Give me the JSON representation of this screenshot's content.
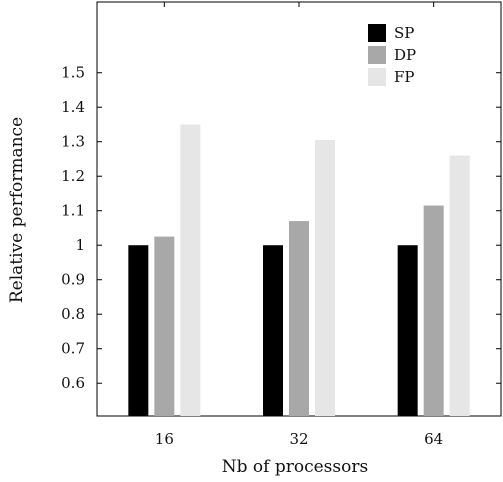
{
  "chart_data": {
    "type": "bar",
    "xlabel": "Nb of processors",
    "ylabel": "Relative performance",
    "categories": [
      "16",
      "32",
      "64"
    ],
    "series": [
      {
        "name": "SP",
        "color": "#000000",
        "values": [
          1.0,
          1.0,
          1.0
        ]
      },
      {
        "name": "DP",
        "color": "#a8a8a8",
        "values": [
          1.025,
          1.07,
          1.115
        ]
      },
      {
        "name": "FP",
        "color": "#e6e6e6",
        "values": [
          1.35,
          1.305,
          1.26
        ]
      }
    ],
    "yticks": [
      "0.6",
      "0.7",
      "0.8",
      "0.9",
      "1",
      "1.1",
      "1.2",
      "1.3",
      "1.4",
      "1.5"
    ],
    "ylim": [
      0.505,
      1.705
    ],
    "grid": false,
    "legend_position": "top-right"
  }
}
